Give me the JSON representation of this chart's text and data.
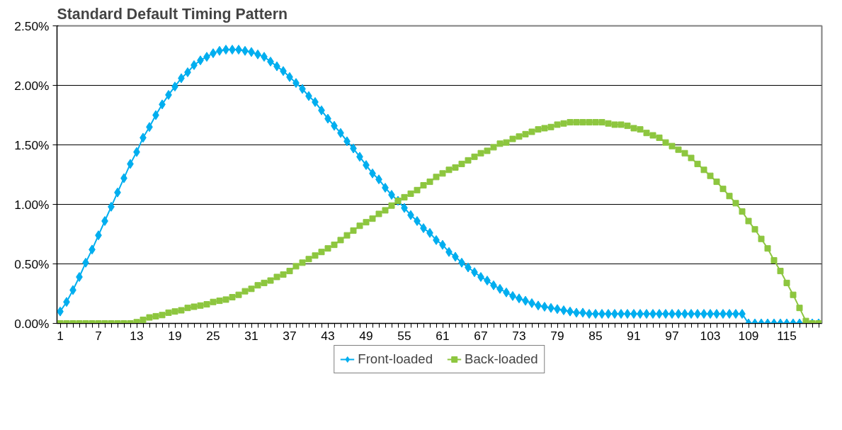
{
  "chart_data": {
    "type": "line",
    "title": "Standard Default Timing Pattern",
    "categories": [
      "1",
      null,
      null,
      null,
      null,
      null,
      "7",
      null,
      null,
      null,
      null,
      null,
      "13",
      null,
      null,
      null,
      null,
      null,
      "19",
      null,
      null,
      null,
      null,
      null,
      "25",
      null,
      null,
      null,
      null,
      null,
      "31",
      null,
      null,
      null,
      null,
      null,
      "37",
      null,
      null,
      null,
      null,
      null,
      "43",
      null,
      null,
      null,
      null,
      null,
      "49",
      null,
      null,
      null,
      null,
      null,
      "55",
      null,
      null,
      null,
      null,
      null,
      "61",
      null,
      null,
      null,
      null,
      null,
      "67",
      null,
      null,
      null,
      null,
      null,
      "73",
      null,
      null,
      null,
      null,
      null,
      "79",
      null,
      null,
      null,
      null,
      null,
      "85",
      null,
      null,
      null,
      null,
      null,
      "91",
      null,
      null,
      null,
      null,
      null,
      "97",
      null,
      null,
      null,
      null,
      null,
      "103",
      null,
      null,
      null,
      null,
      null,
      "109",
      null,
      null,
      null,
      null,
      null,
      "115",
      null,
      null,
      null,
      null,
      null
    ],
    "series": [
      {
        "name": "Front-loaded",
        "color": "#00aeef",
        "marker": "diamond",
        "values": [
          0.1,
          0.18,
          0.28,
          0.39,
          0.51,
          0.62,
          0.74,
          0.86,
          0.98,
          1.1,
          1.22,
          1.34,
          1.44,
          1.56,
          1.65,
          1.75,
          1.84,
          1.92,
          1.99,
          2.06,
          2.11,
          2.17,
          2.21,
          2.24,
          2.27,
          2.29,
          2.3,
          2.3,
          2.3,
          2.29,
          2.28,
          2.26,
          2.24,
          2.2,
          2.16,
          2.12,
          2.07,
          2.02,
          1.97,
          1.91,
          1.86,
          1.79,
          1.72,
          1.66,
          1.6,
          1.53,
          1.47,
          1.4,
          1.33,
          1.26,
          1.21,
          1.14,
          1.08,
          1.03,
          0.97,
          0.91,
          0.86,
          0.8,
          0.76,
          0.7,
          0.66,
          0.6,
          0.56,
          0.51,
          0.47,
          0.43,
          0.39,
          0.36,
          0.32,
          0.29,
          0.26,
          0.23,
          0.21,
          0.19,
          0.17,
          0.15,
          0.14,
          0.13,
          0.12,
          0.11,
          0.1,
          0.09,
          0.09,
          0.08,
          0.08,
          0.08,
          0.08,
          0.08,
          0.08,
          0.08,
          0.08,
          0.08,
          0.08,
          0.08,
          0.08,
          0.08,
          0.08,
          0.08,
          0.08,
          0.08,
          0.08,
          0.08,
          0.08,
          0.08,
          0.08,
          0.08,
          0.08,
          0.08,
          0,
          0,
          0,
          0,
          0,
          0,
          0,
          0,
          0,
          0,
          0,
          0
        ]
      },
      {
        "name": "Back-loaded",
        "color": "#8dc63f",
        "marker": "square",
        "values": [
          0,
          0,
          0,
          0,
          0,
          0,
          0,
          0,
          0,
          0,
          0,
          0,
          0.01,
          0.03,
          0.05,
          0.06,
          0.07,
          0.09,
          0.1,
          0.11,
          0.13,
          0.14,
          0.15,
          0.16,
          0.18,
          0.19,
          0.2,
          0.22,
          0.24,
          0.27,
          0.29,
          0.32,
          0.34,
          0.36,
          0.39,
          0.41,
          0.44,
          0.48,
          0.51,
          0.54,
          0.57,
          0.6,
          0.63,
          0.66,
          0.7,
          0.74,
          0.78,
          0.82,
          0.85,
          0.88,
          0.92,
          0.95,
          0.99,
          1.03,
          1.06,
          1.09,
          1.12,
          1.16,
          1.19,
          1.23,
          1.26,
          1.29,
          1.31,
          1.34,
          1.37,
          1.4,
          1.43,
          1.45,
          1.48,
          1.51,
          1.52,
          1.55,
          1.57,
          1.59,
          1.61,
          1.63,
          1.64,
          1.65,
          1.67,
          1.68,
          1.69,
          1.69,
          1.69,
          1.69,
          1.69,
          1.69,
          1.68,
          1.67,
          1.67,
          1.66,
          1.64,
          1.63,
          1.6,
          1.58,
          1.56,
          1.52,
          1.49,
          1.46,
          1.43,
          1.39,
          1.34,
          1.29,
          1.24,
          1.19,
          1.13,
          1.07,
          1.01,
          0.94,
          0.86,
          0.79,
          0.71,
          0.63,
          0.53,
          0.44,
          0.34,
          0.24,
          0.13,
          0.02,
          0,
          0
        ]
      }
    ],
    "ylim": [
      0,
      2.5
    ],
    "yticks": [
      {
        "value": 0,
        "label": "0.00%"
      },
      {
        "value": 0.5,
        "label": "0.50%"
      },
      {
        "value": 1,
        "label": "1.00%"
      },
      {
        "value": 1.5,
        "label": "1.50%"
      },
      {
        "value": 2,
        "label": "2.00%"
      },
      {
        "value": 2.5,
        "label": "2.50%"
      }
    ],
    "grid": "y",
    "legend": "bottom",
    "line_style": "solid"
  }
}
